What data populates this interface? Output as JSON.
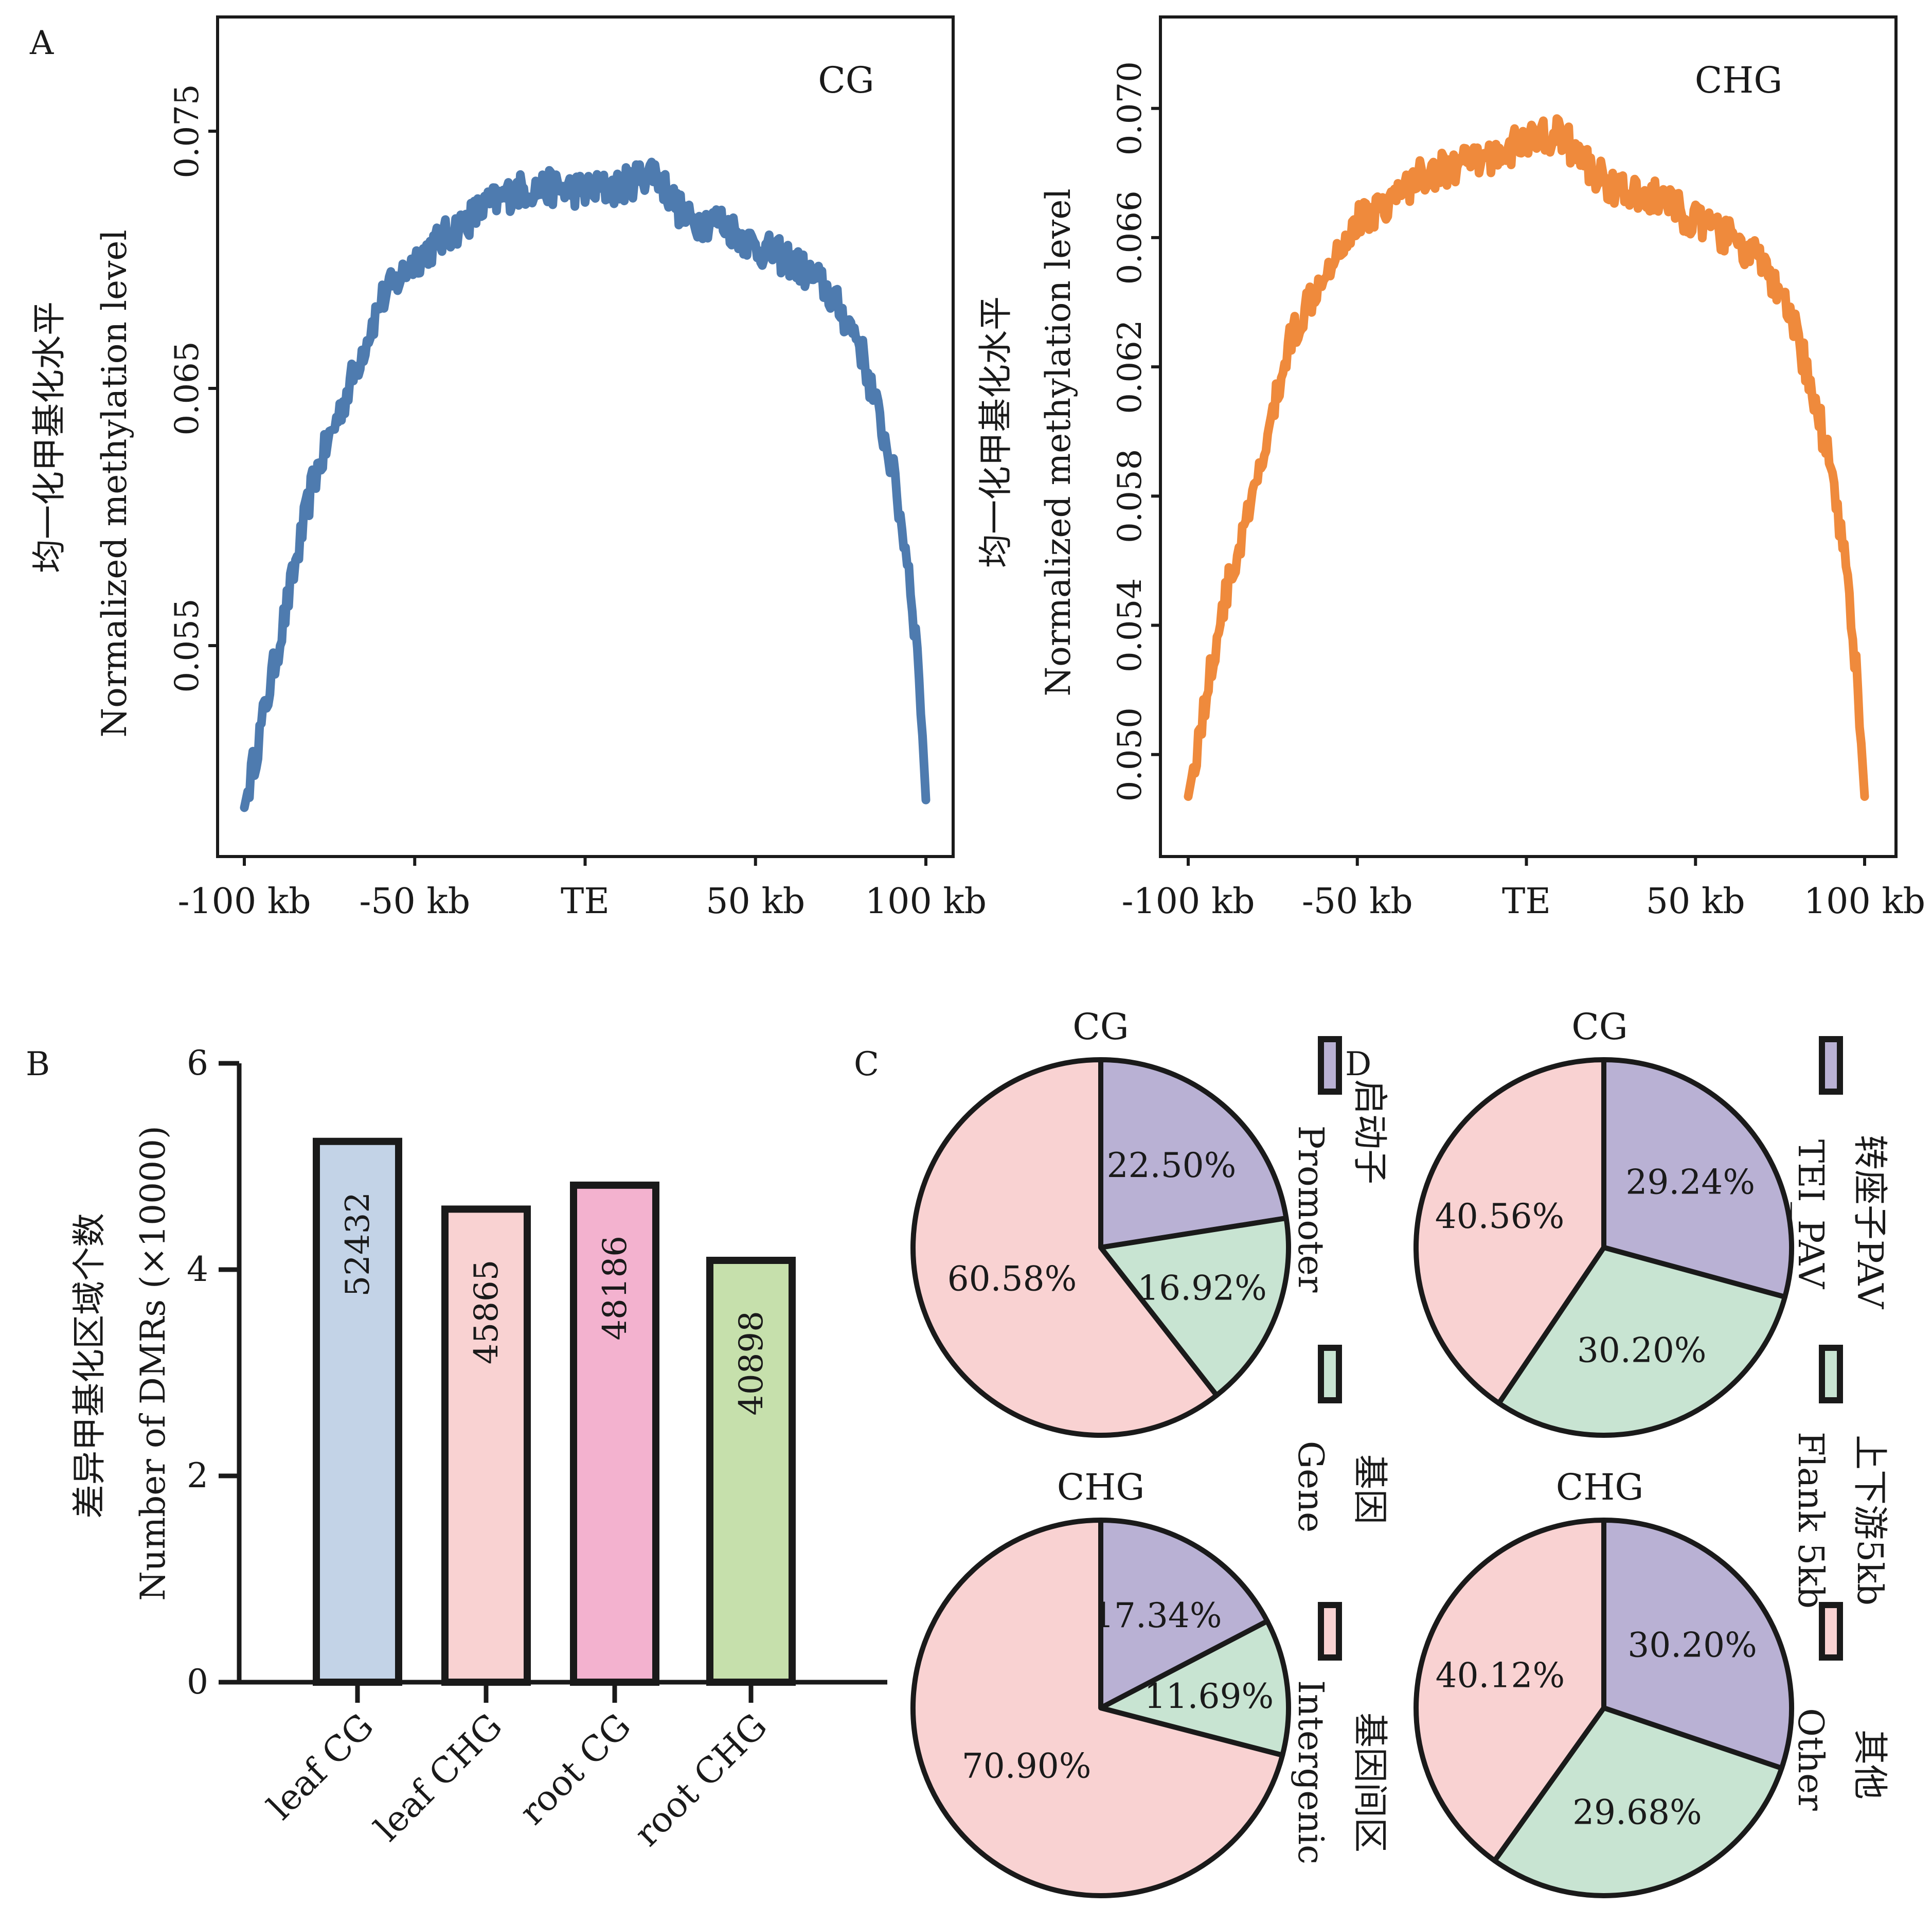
{
  "panels": {
    "a": {
      "letter": "A"
    },
    "b": {
      "letter": "B"
    },
    "c": {
      "letter": "C"
    },
    "d": {
      "letter": "D"
    }
  },
  "colors": {
    "cg_line": "#4e7baf",
    "chg_line": "#ef8a3c",
    "promoter": "#b9b1d4",
    "gene": "#c8e4d2",
    "intergenic": "#f9d2d2",
    "bar_leaf_cg": "#c3d3e7",
    "bar_leaf_chg": "#f9d2d2",
    "bar_root_cg": "#f3b2cf",
    "bar_root_chg": "#c6e0ac",
    "stroke": "#1a1a1a"
  },
  "chart_data": [
    {
      "id": "A-CG",
      "type": "line",
      "title": "CG",
      "ylabel_cn": "均一化甲基化水平",
      "ylabel_en": "Normalized methylation level",
      "xticks": [
        "-100 kb",
        "-50 kb",
        "TE",
        "50 kb",
        "100 kb"
      ],
      "xlim": [
        -100,
        100
      ],
      "ylim": [
        0.0475,
        0.0789
      ],
      "yticks": [
        "0.055",
        "0.065",
        "0.075"
      ],
      "ytick_values": [
        0.055,
        0.065,
        0.075
      ],
      "series": [
        {
          "color": "#4e7baf",
          "x": [
            -100,
            -90,
            -80,
            -70,
            -60,
            -50,
            -40,
            -30,
            -20,
            -10,
            0,
            10,
            20,
            30,
            40,
            50,
            60,
            70,
            80,
            90,
            95,
            98,
            100
          ],
          "y": [
            0.0487,
            0.055,
            0.0613,
            0.0648,
            0.0684,
            0.07,
            0.071,
            0.072,
            0.0727,
            0.0728,
            0.0727,
            0.0728,
            0.0735,
            0.0715,
            0.0715,
            0.0705,
            0.07,
            0.069,
            0.067,
            0.062,
            0.058,
            0.054,
            0.049
          ]
        }
      ]
    },
    {
      "id": "A-CHG",
      "type": "line",
      "title": "CHG",
      "ylabel_cn": "均一化甲基化水平",
      "ylabel_en": "Normalized methylation level",
      "xticks": [
        "-100 kb",
        "-50 kb",
        "TE",
        "50 kb",
        "100 kb"
      ],
      "xlim": [
        -100,
        100
      ],
      "ylim": [
        0.0474,
        0.0724
      ],
      "yticks": [
        "0.050",
        "0.054",
        "0.058",
        "0.062",
        "0.066",
        "0.070"
      ],
      "ytick_values": [
        0.05,
        0.054,
        0.058,
        0.062,
        0.066,
        0.07
      ],
      "series": [
        {
          "color": "#ef8a3c",
          "x": [
            -100,
            -90,
            -80,
            -70,
            -60,
            -50,
            -40,
            -30,
            -20,
            -10,
            0,
            10,
            20,
            30,
            40,
            50,
            60,
            70,
            80,
            90,
            95,
            98,
            100
          ],
          "y": [
            0.0487,
            0.0545,
            0.0582,
            0.0628,
            0.065,
            0.0665,
            0.0672,
            0.068,
            0.0682,
            0.0685,
            0.069,
            0.0692,
            0.068,
            0.0673,
            0.0672,
            0.0665,
            0.066,
            0.0652,
            0.063,
            0.059,
            0.0555,
            0.052,
            0.0487
          ]
        }
      ]
    },
    {
      "id": "B",
      "type": "bar",
      "ylabel_cn": "差异甲基化区域个数",
      "ylabel_en": "Number of DMRs (×10000)",
      "categories": [
        "leaf CG",
        "leaf CHG",
        "root CG",
        "root CHG"
      ],
      "values": [
        52432,
        45865,
        48186,
        40898
      ],
      "value_labels": [
        "52432",
        "45865",
        "48186",
        "40898"
      ],
      "ylim": [
        0,
        6
      ],
      "yticks": [
        "0",
        "2",
        "4",
        "6"
      ],
      "ytick_values": [
        0,
        2,
        4,
        6
      ]
    },
    {
      "id": "C-CG",
      "type": "pie",
      "title": "CG",
      "slices": [
        {
          "label": "22.50%",
          "value": 22.5,
          "color": "#b9b1d4"
        },
        {
          "label": "16.92%",
          "value": 16.92,
          "color": "#c8e4d2"
        },
        {
          "label": "60.58%",
          "value": 60.58,
          "color": "#f9d2d2"
        }
      ]
    },
    {
      "id": "C-CHG",
      "type": "pie",
      "title": "CHG",
      "slices": [
        {
          "label": "17.34%",
          "value": 17.34,
          "color": "#b9b1d4"
        },
        {
          "label": "11.69%",
          "value": 11.69,
          "color": "#c8e4d2"
        },
        {
          "label": "70.90%",
          "value": 70.9,
          "color": "#f9d2d2"
        }
      ]
    },
    {
      "id": "D-CG",
      "type": "pie",
      "title": "CG",
      "slices": [
        {
          "label": "29.24%",
          "value": 29.24,
          "color": "#b9b1d4"
        },
        {
          "label": "30.20%",
          "value": 30.2,
          "color": "#c8e4d2"
        },
        {
          "label": "40.56%",
          "value": 40.56,
          "color": "#f9d2d2"
        }
      ]
    },
    {
      "id": "D-CHG",
      "type": "pie",
      "title": "CHG",
      "slices": [
        {
          "label": "30.20%",
          "value": 30.2,
          "color": "#b9b1d4"
        },
        {
          "label": "29.68%",
          "value": 29.68,
          "color": "#c8e4d2"
        },
        {
          "label": "40.12%",
          "value": 40.12,
          "color": "#f9d2d2"
        }
      ]
    }
  ],
  "legend_c": [
    {
      "cn": "启动子",
      "en": "Promoter",
      "color": "#b9b1d4"
    },
    {
      "cn": "基因",
      "en": "Gene",
      "color": "#c8e4d2"
    },
    {
      "cn": "基因间区",
      "en": "Intergenic",
      "color": "#f9d2d2"
    }
  ],
  "legend_d": [
    {
      "cn": "转座子PAV",
      "en": "TEI_PAV",
      "color": "#b9b1d4"
    },
    {
      "cn": "上下游5kb",
      "en": "Flank 5kb",
      "color": "#c8e4d2"
    },
    {
      "cn": "其他",
      "en": "Other",
      "color": "#f9d2d2"
    }
  ]
}
